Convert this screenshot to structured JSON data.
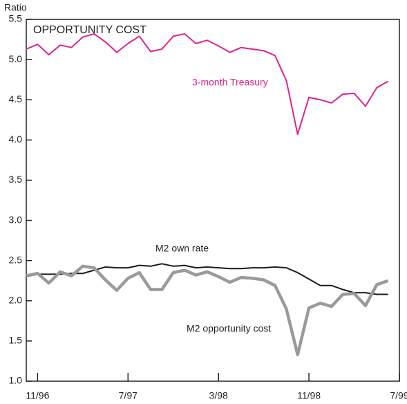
{
  "chart_data": {
    "type": "line",
    "title": "OPPORTUNITY COST",
    "y_axis_label": "Ratio",
    "x": [
      "1996-10",
      "1996-11",
      "1996-12",
      "1997-01",
      "1997-02",
      "1997-03",
      "1997-04",
      "1997-05",
      "1997-06",
      "1997-07",
      "1997-08",
      "1997-09",
      "1997-10",
      "1997-11",
      "1997-12",
      "1998-01",
      "1998-02",
      "1998-03",
      "1998-04",
      "1998-05",
      "1998-06",
      "1998-07",
      "1998-08",
      "1998-09",
      "1998-10",
      "1998-11",
      "1998-12",
      "1999-01",
      "1999-02",
      "1999-03",
      "1999-04",
      "1999-05",
      "1999-06"
    ],
    "series": [
      {
        "name": "3-month Treasury",
        "color": "#e0218a",
        "width": 2,
        "values": [
          5.13,
          5.19,
          5.06,
          5.18,
          5.15,
          5.28,
          5.32,
          5.22,
          5.09,
          5.2,
          5.29,
          5.1,
          5.13,
          5.29,
          5.32,
          5.2,
          5.24,
          5.17,
          5.09,
          5.15,
          5.13,
          5.11,
          5.05,
          4.74,
          4.07,
          4.53,
          4.5,
          4.46,
          4.57,
          4.58,
          4.42,
          4.65,
          4.73
        ]
      },
      {
        "name": "M2 own rate",
        "color": "#1a1a1a",
        "width": 2,
        "values": [
          2.3,
          2.33,
          2.33,
          2.33,
          2.34,
          2.34,
          2.38,
          2.42,
          2.41,
          2.41,
          2.44,
          2.43,
          2.46,
          2.43,
          2.44,
          2.41,
          2.42,
          2.41,
          2.4,
          2.4,
          2.41,
          2.41,
          2.42,
          2.41,
          2.35,
          2.27,
          2.19,
          2.19,
          2.14,
          2.1,
          2.1,
          2.08,
          2.08
        ]
      },
      {
        "name": "M2 opportunity cost",
        "color": "#9a9a9a",
        "width": 4.5,
        "values": [
          2.31,
          2.34,
          2.22,
          2.36,
          2.31,
          2.43,
          2.41,
          2.26,
          2.13,
          2.28,
          2.35,
          2.14,
          2.14,
          2.35,
          2.38,
          2.32,
          2.36,
          2.3,
          2.23,
          2.29,
          2.28,
          2.26,
          2.19,
          1.9,
          1.33,
          1.91,
          1.97,
          1.93,
          2.08,
          2.09,
          1.94,
          2.2,
          2.25
        ]
      }
    ],
    "xlim": [
      "1996-10",
      "1999-07"
    ],
    "xticks": [
      {
        "value": "1996-11",
        "label": "11/96"
      },
      {
        "value": "1997-07",
        "label": "7/97"
      },
      {
        "value": "1998-03",
        "label": "3/98"
      },
      {
        "value": "1998-11",
        "label": "11/98"
      },
      {
        "value": "1999-07",
        "label": "7/99"
      }
    ],
    "ylim": [
      1.0,
      5.5
    ],
    "yticks": [
      {
        "value": 1.0,
        "label": "1.0"
      },
      {
        "value": 1.5,
        "label": "1.5"
      },
      {
        "value": 2.0,
        "label": "2.0"
      },
      {
        "value": 2.5,
        "label": "2.5"
      },
      {
        "value": 3.0,
        "label": "3.0"
      },
      {
        "value": 3.5,
        "label": "3.5"
      },
      {
        "value": 4.0,
        "label": "4.0"
      },
      {
        "value": 4.5,
        "label": "4.5"
      },
      {
        "value": 5.0,
        "label": "5.0"
      },
      {
        "value": 5.5,
        "label": "5.5"
      }
    ],
    "grid": false
  }
}
